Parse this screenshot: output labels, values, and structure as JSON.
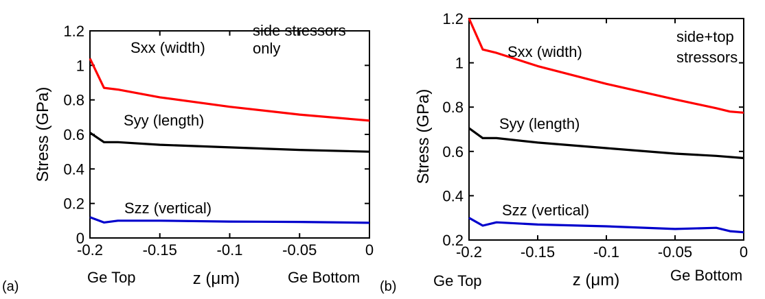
{
  "chart_data": [
    {
      "type": "line",
      "panel_label": "(a)",
      "xlabel": "z (μm)",
      "ylabel": "Stress (GPa)",
      "xlim": [
        -0.2,
        0
      ],
      "ylim": [
        0,
        1.2
      ],
      "x_ticks": [
        "-0.2",
        "-0.15",
        "-0.1",
        "-0.05",
        "0"
      ],
      "y_ticks": [
        "0",
        "0.2",
        "0.4",
        "0.6",
        "0.8",
        "1",
        "1.2"
      ],
      "x_end_labels": {
        "left": "Ge Top",
        "right": "Ge Bottom"
      },
      "annotation": [
        "side stressors",
        "only"
      ],
      "grid": false,
      "series": [
        {
          "name": "Sxx (width)",
          "color": "#ff0000",
          "x": [
            -0.2,
            -0.19,
            -0.18,
            -0.15,
            -0.1,
            -0.05,
            0
          ],
          "y": [
            1.04,
            0.87,
            0.86,
            0.815,
            0.76,
            0.715,
            0.68
          ]
        },
        {
          "name": "Syy (length)",
          "color": "#000000",
          "x": [
            -0.2,
            -0.19,
            -0.18,
            -0.15,
            -0.1,
            -0.05,
            0
          ],
          "y": [
            0.61,
            0.555,
            0.555,
            0.54,
            0.525,
            0.51,
            0.5
          ]
        },
        {
          "name": "Szz (vertical)",
          "color": "#0000cc",
          "x": [
            -0.2,
            -0.19,
            -0.18,
            -0.15,
            -0.1,
            -0.05,
            0
          ],
          "y": [
            0.12,
            0.09,
            0.1,
            0.1,
            0.095,
            0.093,
            0.088
          ]
        }
      ]
    },
    {
      "type": "line",
      "panel_label": "(b)",
      "xlabel": "z (μm)",
      "ylabel": "Stress (GPa)",
      "xlim": [
        -0.2,
        0
      ],
      "ylim": [
        0.2,
        1.2
      ],
      "x_ticks": [
        "-0.2",
        "-0.15",
        "-0.1",
        "-0.05",
        "0"
      ],
      "y_ticks": [
        "0.2",
        "0.4",
        "0.6",
        "0.8",
        "1",
        "1.2"
      ],
      "x_end_labels": {
        "left": "Ge Top",
        "right": "Ge Bottom"
      },
      "annotation": [
        "side+top",
        "stressors"
      ],
      "grid": false,
      "series": [
        {
          "name": "Sxx (width)",
          "color": "#ff0000",
          "x": [
            -0.2,
            -0.19,
            -0.18,
            -0.15,
            -0.1,
            -0.05,
            -0.02,
            -0.01,
            0
          ],
          "y": [
            1.2,
            1.06,
            1.045,
            0.985,
            0.905,
            0.835,
            0.795,
            0.78,
            0.775
          ]
        },
        {
          "name": "Syy (length)",
          "color": "#000000",
          "x": [
            -0.2,
            -0.19,
            -0.18,
            -0.15,
            -0.1,
            -0.05,
            -0.02,
            0
          ],
          "y": [
            0.705,
            0.66,
            0.66,
            0.64,
            0.615,
            0.59,
            0.58,
            0.57
          ]
        },
        {
          "name": "Szz (vertical)",
          "color": "#0000cc",
          "x": [
            -0.2,
            -0.19,
            -0.18,
            -0.15,
            -0.1,
            -0.05,
            -0.02,
            -0.01,
            0
          ],
          "y": [
            0.3,
            0.265,
            0.28,
            0.27,
            0.262,
            0.25,
            0.255,
            0.24,
            0.235
          ]
        }
      ]
    }
  ]
}
